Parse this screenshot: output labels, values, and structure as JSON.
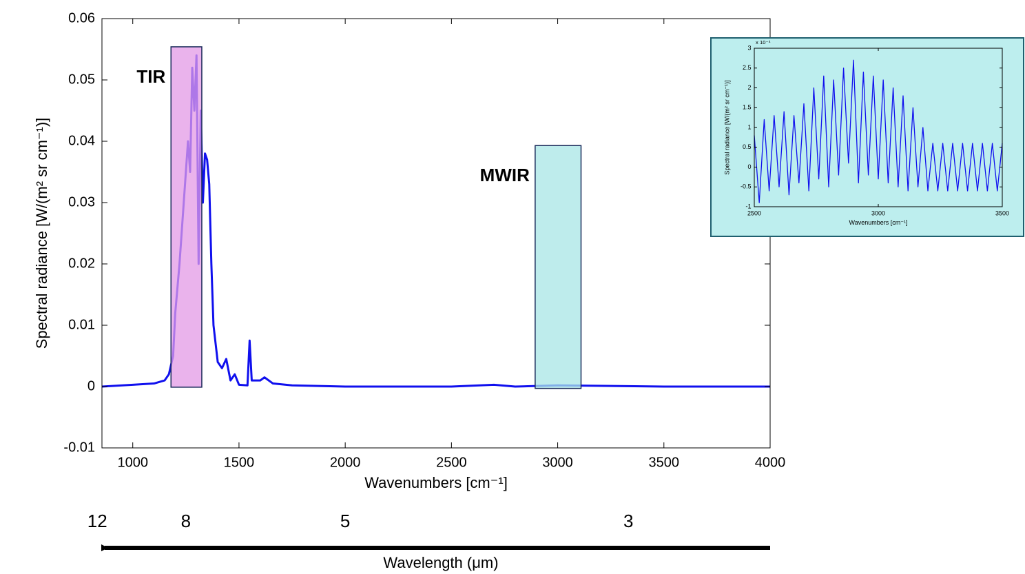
{
  "chart_data": [
    {
      "type": "line",
      "xlabel": "Wavenumbers [cm⁻¹]",
      "ylabel": "Spectral radiance [W/(m² sr cm⁻¹)]",
      "xlim": [
        855,
        4000
      ],
      "ylim": [
        -0.01,
        0.06
      ],
      "xticks": [
        1000,
        1500,
        2000,
        2500,
        3000,
        3500,
        4000
      ],
      "yticks": [
        -0.01,
        0,
        0.01,
        0.02,
        0.03,
        0.04,
        0.05,
        0.06
      ],
      "series": [
        {
          "color": "#1010ee",
          "x": [
            855,
            1000,
            1100,
            1150,
            1170,
            1190,
            1200,
            1220,
            1240,
            1260,
            1270,
            1280,
            1290,
            1300,
            1310,
            1320,
            1330,
            1340,
            1350,
            1360,
            1370,
            1380,
            1400,
            1420,
            1440,
            1460,
            1480,
            1500,
            1540,
            1550,
            1560,
            1600,
            1620,
            1660,
            1750,
            2000,
            2500,
            2700,
            2800,
            3000,
            3500,
            4000
          ],
          "values": [
            0,
            0.0003,
            0.0005,
            0.001,
            0.002,
            0.005,
            0.012,
            0.02,
            0.03,
            0.04,
            0.035,
            0.052,
            0.045,
            0.054,
            0.02,
            0.045,
            0.03,
            0.038,
            0.037,
            0.033,
            0.02,
            0.01,
            0.004,
            0.003,
            0.0045,
            0.001,
            0.002,
            0.0003,
            0.0002,
            0.0075,
            0.001,
            0.001,
            0.0015,
            0.0005,
            0.0002,
            0,
            0,
            0.0003,
            0,
            0.0002,
            0,
            0
          ]
        }
      ],
      "bands": [
        {
          "label": "TIR",
          "x": [
            1180,
            1325
          ],
          "y": [
            -0.0001,
            0.0554
          ],
          "color": "#e39ae6"
        },
        {
          "label": "MWIR",
          "x": [
            2894,
            3110
          ],
          "y": [
            -0.0003,
            0.0393
          ],
          "color": "#a8e6e6"
        }
      ],
      "wavelength_ticks": [
        {
          "value": 833,
          "label": "12"
        },
        {
          "value": 1250,
          "label": "8"
        },
        {
          "value": 2000,
          "label": "5"
        },
        {
          "value": 3333,
          "label": "3"
        }
      ],
      "wavelength_label": "Wavelength (μm)"
    },
    {
      "type": "line",
      "xlabel": "Wavenumbers [cm⁻¹]",
      "ylabel": "Spectral radiance [W/(m² sr cm⁻¹)]",
      "multiplier": "x 10⁻⁴",
      "background": "#bdeeee",
      "xlim": [
        2500,
        3500
      ],
      "ylim": [
        -1,
        3
      ],
      "xticks": [
        2500,
        3000,
        3500
      ],
      "yticks": [
        -1,
        -0.5,
        0,
        0.5,
        1,
        1.5,
        2,
        2.5,
        3
      ],
      "series": [
        {
          "color": "#1010ee",
          "x": [
            2500,
            2520,
            2540,
            2560,
            2580,
            2600,
            2620,
            2640,
            2660,
            2680,
            2700,
            2720,
            2740,
            2760,
            2780,
            2800,
            2820,
            2840,
            2860,
            2880,
            2900,
            2920,
            2940,
            2960,
            2980,
            3000,
            3020,
            3040,
            3060,
            3080,
            3100,
            3120,
            3140,
            3160,
            3180,
            3200,
            3220,
            3240,
            3260,
            3280,
            3300,
            3320,
            3340,
            3360,
            3380,
            3400,
            3420,
            3440,
            3460,
            3480,
            3500
          ],
          "values": [
            0.8,
            -0.9,
            1.2,
            -0.6,
            1.3,
            -0.5,
            1.4,
            -0.7,
            1.3,
            -0.4,
            1.6,
            -0.6,
            2.0,
            -0.3,
            2.3,
            -0.5,
            2.2,
            -0.2,
            2.5,
            0.1,
            2.7,
            -0.4,
            2.4,
            -0.2,
            2.3,
            -0.3,
            2.2,
            -0.4,
            2.0,
            -0.5,
            1.8,
            -0.6,
            1.5,
            -0.5,
            1.0,
            -0.6,
            0.6,
            -0.6,
            0.6,
            -0.6,
            0.6,
            -0.6,
            0.6,
            -0.6,
            0.6,
            -0.6,
            0.6,
            -0.6,
            0.6,
            -0.6,
            0.6
          ]
        }
      ]
    }
  ]
}
